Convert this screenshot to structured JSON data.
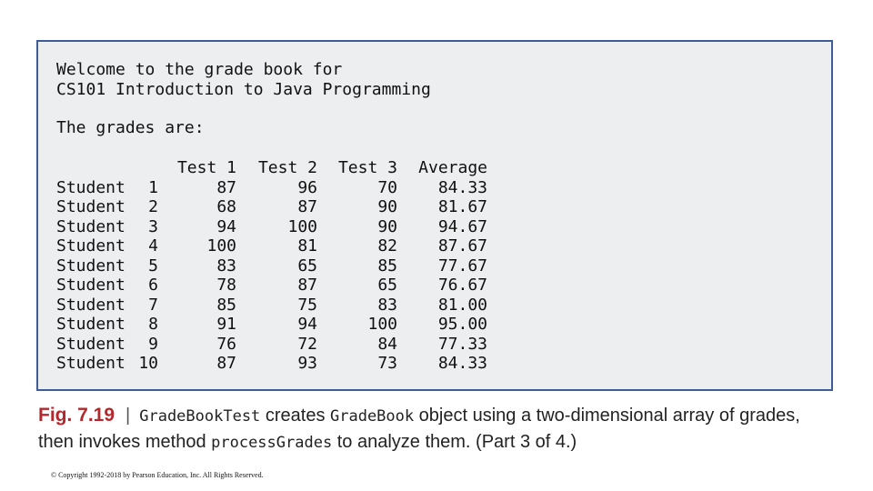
{
  "console": {
    "line1": "Welcome to the grade book for",
    "line2": "CS101 Introduction to Java Programming",
    "line3": "The grades are:",
    "headers": [
      "Test 1",
      "Test 2",
      "Test 3",
      "Average"
    ],
    "rows": [
      {
        "label": "Student",
        "num": "1",
        "t1": "87",
        "t2": "96",
        "t3": "70",
        "avg": "84.33"
      },
      {
        "label": "Student",
        "num": "2",
        "t1": "68",
        "t2": "87",
        "t3": "90",
        "avg": "81.67"
      },
      {
        "label": "Student",
        "num": "3",
        "t1": "94",
        "t2": "100",
        "t3": "90",
        "avg": "94.67"
      },
      {
        "label": "Student",
        "num": "4",
        "t1": "100",
        "t2": "81",
        "t3": "82",
        "avg": "87.67"
      },
      {
        "label": "Student",
        "num": "5",
        "t1": "83",
        "t2": "65",
        "t3": "85",
        "avg": "77.67"
      },
      {
        "label": "Student",
        "num": "6",
        "t1": "78",
        "t2": "87",
        "t3": "65",
        "avg": "76.67"
      },
      {
        "label": "Student",
        "num": "7",
        "t1": "85",
        "t2": "75",
        "t3": "83",
        "avg": "81.00"
      },
      {
        "label": "Student",
        "num": "8",
        "t1": "91",
        "t2": "94",
        "t3": "100",
        "avg": "95.00"
      },
      {
        "label": "Student",
        "num": "9",
        "t1": "76",
        "t2": "72",
        "t3": "84",
        "avg": "77.33"
      },
      {
        "label": "Student",
        "num": "10",
        "t1": "87",
        "t2": "93",
        "t3": "73",
        "avg": "84.33"
      }
    ]
  },
  "caption": {
    "fig_label": "Fig. 7.19",
    "separator": "|",
    "code1": "GradeBookTest",
    "text1": " creates ",
    "code2": "GradeBook",
    "text2": " object using a two-dimensional array of grades,",
    "text3": "then invokes method ",
    "code3": "processGrades",
    "text4": " to analyze them. (Part 3 of 4.)"
  },
  "footer": {
    "copyright": "© Copyright 1992-2018 by Pearson Education, Inc. All Rights Reserved."
  },
  "colors": {
    "console_bg": "#eceef0",
    "console_border": "#3f5d94",
    "fig_label": "#b3282d"
  }
}
